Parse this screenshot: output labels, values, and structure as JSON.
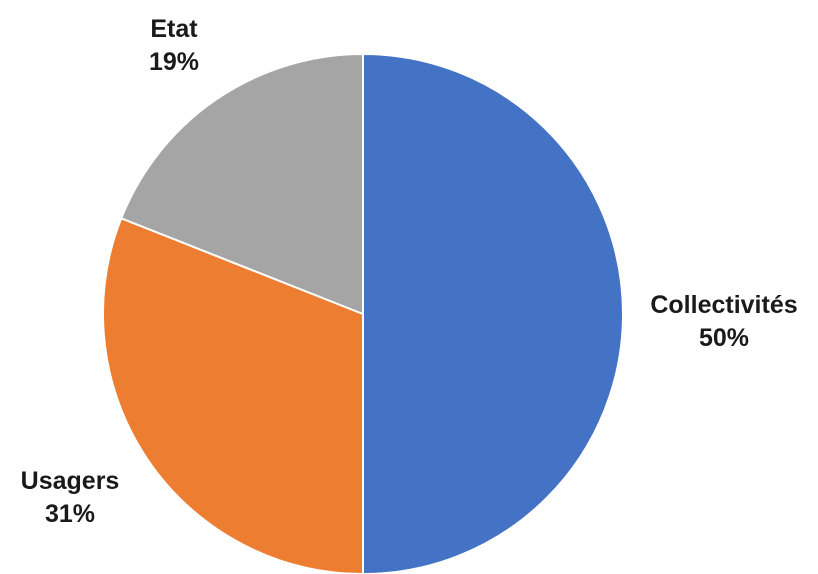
{
  "chart_data": {
    "type": "pie",
    "title": "",
    "slices": [
      {
        "label": "Collectivités",
        "value": 50,
        "value_label": "50%",
        "color": "#4472C4"
      },
      {
        "label": "Usagers",
        "value": 31,
        "value_label": "31%",
        "color": "#ED7D31"
      },
      {
        "label": "Etat",
        "value": 19,
        "value_label": "19%",
        "color": "#A5A5A5"
      }
    ],
    "start": "12 o'clock",
    "direction": "clockwise",
    "slice_border_color": "#ffffff",
    "legend": "none"
  }
}
